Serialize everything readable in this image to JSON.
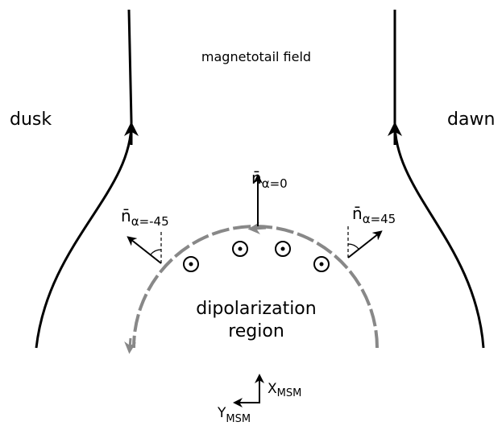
{
  "title": "magnetotail field",
  "sides": {
    "left": "dusk",
    "right": "dawn"
  },
  "region": [
    "dipolarization",
    "region"
  ],
  "normals": [
    {
      "symbol": "n̄",
      "subscript": "α=-45"
    },
    {
      "symbol": "n̄",
      "subscript": "α=0"
    },
    {
      "symbol": "n̄",
      "subscript": "α=45"
    }
  ],
  "axes": [
    {
      "symbol": "X",
      "subscript": "MSM"
    },
    {
      "symbol": "Y",
      "subscript": "MSM"
    }
  ]
}
